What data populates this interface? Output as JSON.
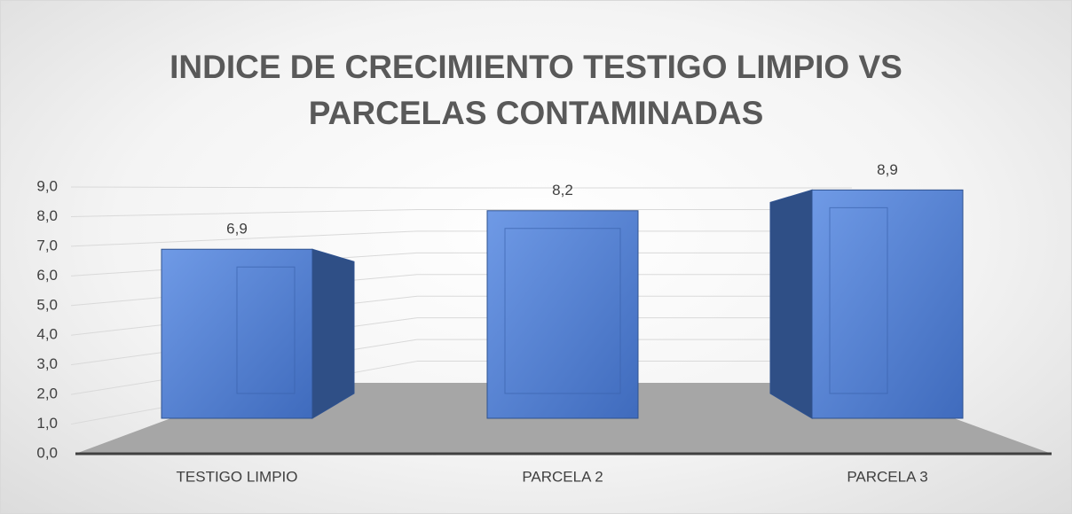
{
  "chart_data": {
    "type": "bar3d",
    "title": "INDICE DE CRECIMIENTO TESTIGO LIMPIO VS PARCELAS CONTAMINADAS",
    "categories": [
      "TESTIGO LIMPIO",
      "PARCELA 2",
      "PARCELA 3"
    ],
    "values": [
      6.9,
      8.2,
      8.9
    ],
    "value_labels": [
      "6,9",
      "8,2",
      "8,9"
    ],
    "color": "#4472c4",
    "ylim": [
      0,
      9
    ],
    "yticks": [
      {
        "value": 0,
        "label": "0,0"
      },
      {
        "value": 1,
        "label": "1,0"
      },
      {
        "value": 2,
        "label": "2,0"
      },
      {
        "value": 3,
        "label": "3,0"
      },
      {
        "value": 4,
        "label": "4,0"
      },
      {
        "value": 5,
        "label": "5,0"
      },
      {
        "value": 6,
        "label": "6,0"
      },
      {
        "value": 7,
        "label": "7,0"
      },
      {
        "value": 8,
        "label": "8,0"
      },
      {
        "value": 9,
        "label": "9,0"
      }
    ],
    "grid": true
  }
}
